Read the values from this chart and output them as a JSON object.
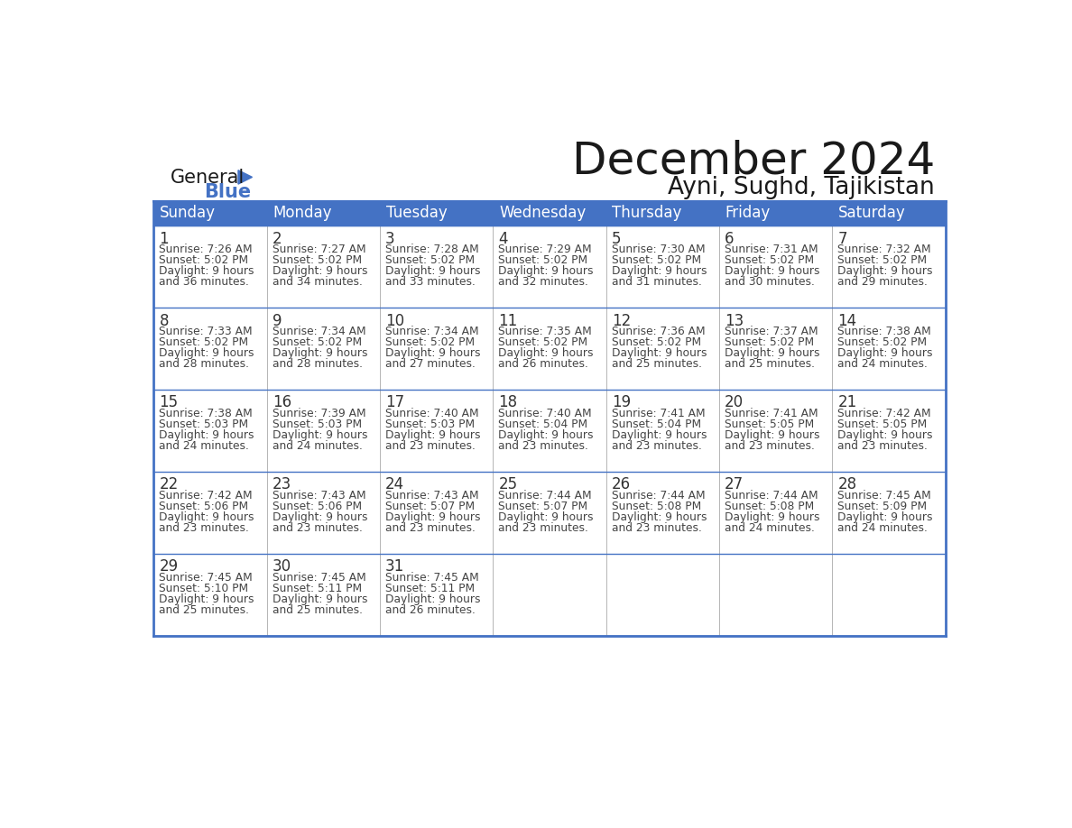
{
  "title": "December 2024",
  "subtitle": "Ayni, Sughd, Tajikistan",
  "header_bg": "#4472C4",
  "header_text": "#FFFFFF",
  "header_days": [
    "Sunday",
    "Monday",
    "Tuesday",
    "Wednesday",
    "Thursday",
    "Friday",
    "Saturday"
  ],
  "border_color": "#4472C4",
  "day_number_color": "#333333",
  "info_color": "#444444",
  "title_color": "#1a1a1a",
  "subtitle_color": "#1a1a1a",
  "logo_general_color": "#1a1a1a",
  "logo_blue_color": "#4472C4",
  "weeks": [
    [
      {
        "day": 1,
        "sunrise": "7:26 AM",
        "sunset": "5:02 PM",
        "daylight_hours": 9,
        "daylight_minutes": "36"
      },
      {
        "day": 2,
        "sunrise": "7:27 AM",
        "sunset": "5:02 PM",
        "daylight_hours": 9,
        "daylight_minutes": "34"
      },
      {
        "day": 3,
        "sunrise": "7:28 AM",
        "sunset": "5:02 PM",
        "daylight_hours": 9,
        "daylight_minutes": "33"
      },
      {
        "day": 4,
        "sunrise": "7:29 AM",
        "sunset": "5:02 PM",
        "daylight_hours": 9,
        "daylight_minutes": "32"
      },
      {
        "day": 5,
        "sunrise": "7:30 AM",
        "sunset": "5:02 PM",
        "daylight_hours": 9,
        "daylight_minutes": "31"
      },
      {
        "day": 6,
        "sunrise": "7:31 AM",
        "sunset": "5:02 PM",
        "daylight_hours": 9,
        "daylight_minutes": "30"
      },
      {
        "day": 7,
        "sunrise": "7:32 AM",
        "sunset": "5:02 PM",
        "daylight_hours": 9,
        "daylight_minutes": "29"
      }
    ],
    [
      {
        "day": 8,
        "sunrise": "7:33 AM",
        "sunset": "5:02 PM",
        "daylight_hours": 9,
        "daylight_minutes": "28"
      },
      {
        "day": 9,
        "sunrise": "7:34 AM",
        "sunset": "5:02 PM",
        "daylight_hours": 9,
        "daylight_minutes": "28"
      },
      {
        "day": 10,
        "sunrise": "7:34 AM",
        "sunset": "5:02 PM",
        "daylight_hours": 9,
        "daylight_minutes": "27"
      },
      {
        "day": 11,
        "sunrise": "7:35 AM",
        "sunset": "5:02 PM",
        "daylight_hours": 9,
        "daylight_minutes": "26"
      },
      {
        "day": 12,
        "sunrise": "7:36 AM",
        "sunset": "5:02 PM",
        "daylight_hours": 9,
        "daylight_minutes": "25"
      },
      {
        "day": 13,
        "sunrise": "7:37 AM",
        "sunset": "5:02 PM",
        "daylight_hours": 9,
        "daylight_minutes": "25"
      },
      {
        "day": 14,
        "sunrise": "7:38 AM",
        "sunset": "5:02 PM",
        "daylight_hours": 9,
        "daylight_minutes": "24"
      }
    ],
    [
      {
        "day": 15,
        "sunrise": "7:38 AM",
        "sunset": "5:03 PM",
        "daylight_hours": 9,
        "daylight_minutes": "24"
      },
      {
        "day": 16,
        "sunrise": "7:39 AM",
        "sunset": "5:03 PM",
        "daylight_hours": 9,
        "daylight_minutes": "24"
      },
      {
        "day": 17,
        "sunrise": "7:40 AM",
        "sunset": "5:03 PM",
        "daylight_hours": 9,
        "daylight_minutes": "23"
      },
      {
        "day": 18,
        "sunrise": "7:40 AM",
        "sunset": "5:04 PM",
        "daylight_hours": 9,
        "daylight_minutes": "23"
      },
      {
        "day": 19,
        "sunrise": "7:41 AM",
        "sunset": "5:04 PM",
        "daylight_hours": 9,
        "daylight_minutes": "23"
      },
      {
        "day": 20,
        "sunrise": "7:41 AM",
        "sunset": "5:05 PM",
        "daylight_hours": 9,
        "daylight_minutes": "23"
      },
      {
        "day": 21,
        "sunrise": "7:42 AM",
        "sunset": "5:05 PM",
        "daylight_hours": 9,
        "daylight_minutes": "23"
      }
    ],
    [
      {
        "day": 22,
        "sunrise": "7:42 AM",
        "sunset": "5:06 PM",
        "daylight_hours": 9,
        "daylight_minutes": "23"
      },
      {
        "day": 23,
        "sunrise": "7:43 AM",
        "sunset": "5:06 PM",
        "daylight_hours": 9,
        "daylight_minutes": "23"
      },
      {
        "day": 24,
        "sunrise": "7:43 AM",
        "sunset": "5:07 PM",
        "daylight_hours": 9,
        "daylight_minutes": "23"
      },
      {
        "day": 25,
        "sunrise": "7:44 AM",
        "sunset": "5:07 PM",
        "daylight_hours": 9,
        "daylight_minutes": "23"
      },
      {
        "day": 26,
        "sunrise": "7:44 AM",
        "sunset": "5:08 PM",
        "daylight_hours": 9,
        "daylight_minutes": "23"
      },
      {
        "day": 27,
        "sunrise": "7:44 AM",
        "sunset": "5:08 PM",
        "daylight_hours": 9,
        "daylight_minutes": "24"
      },
      {
        "day": 28,
        "sunrise": "7:45 AM",
        "sunset": "5:09 PM",
        "daylight_hours": 9,
        "daylight_minutes": "24"
      }
    ],
    [
      {
        "day": 29,
        "sunrise": "7:45 AM",
        "sunset": "5:10 PM",
        "daylight_hours": 9,
        "daylight_minutes": "25"
      },
      {
        "day": 30,
        "sunrise": "7:45 AM",
        "sunset": "5:11 PM",
        "daylight_hours": 9,
        "daylight_minutes": "25"
      },
      {
        "day": 31,
        "sunrise": "7:45 AM",
        "sunset": "5:11 PM",
        "daylight_hours": 9,
        "daylight_minutes": "26"
      },
      null,
      null,
      null,
      null
    ]
  ]
}
